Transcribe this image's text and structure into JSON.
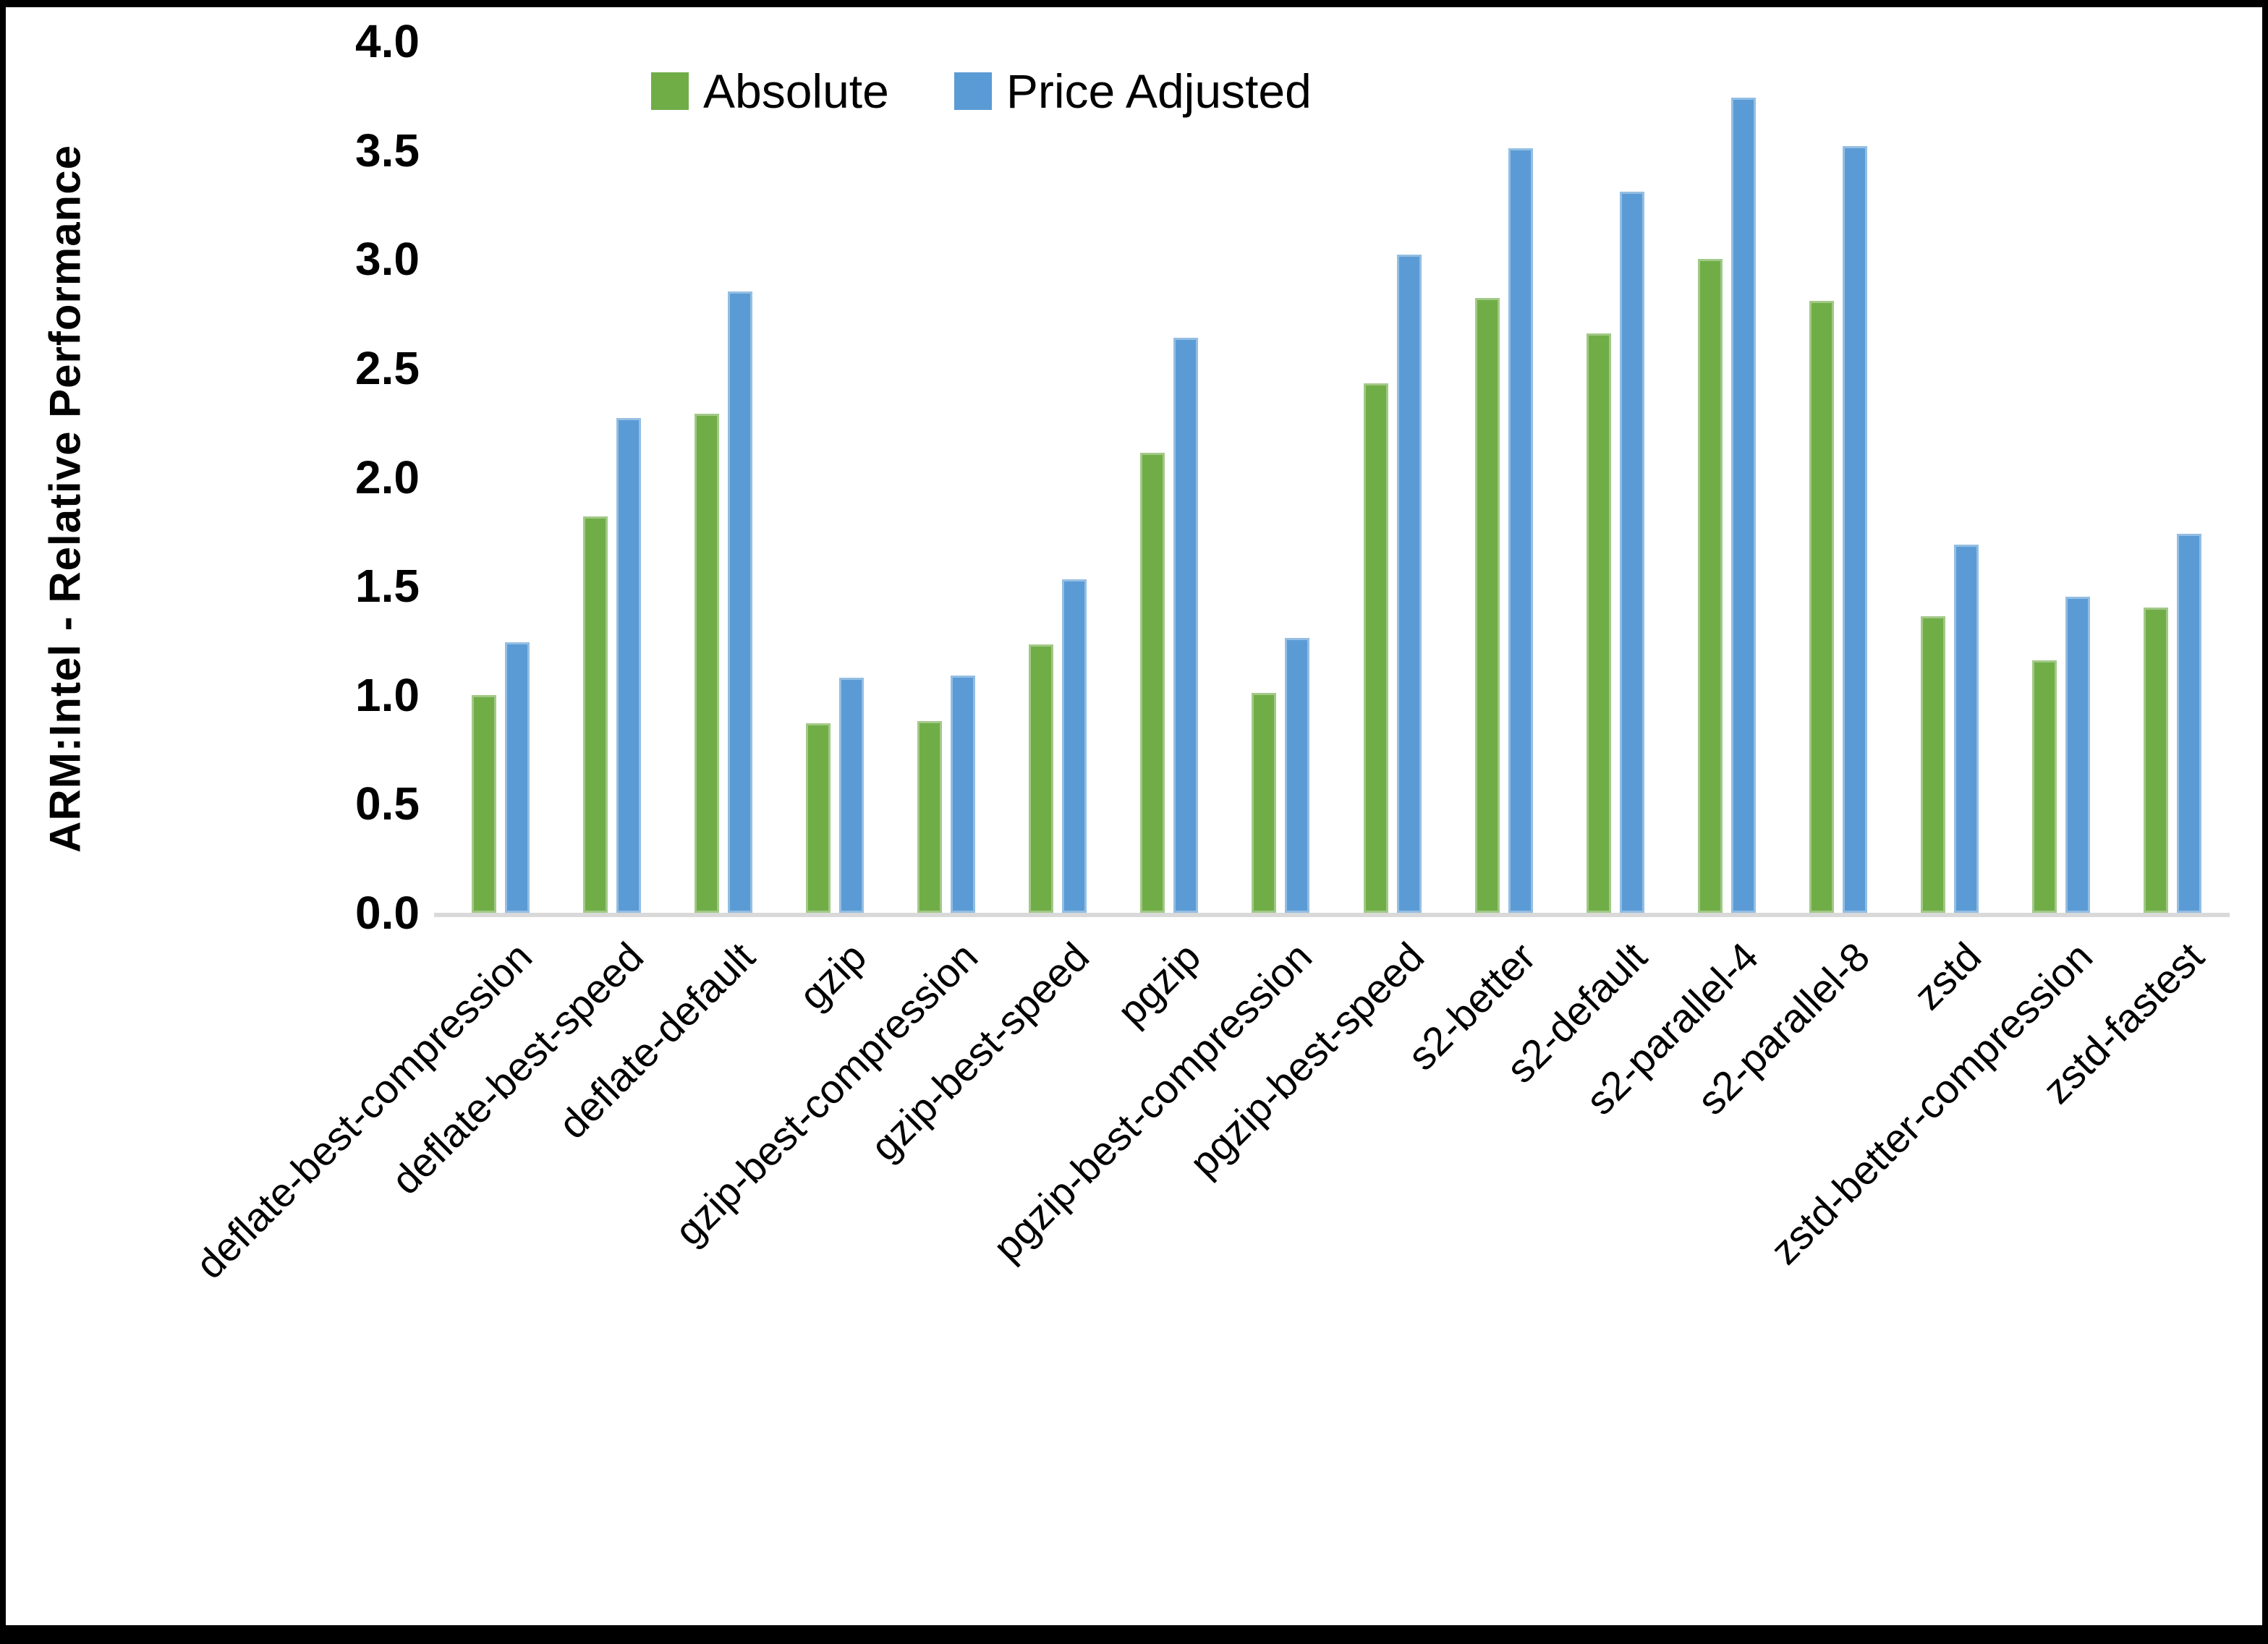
{
  "chart_data": {
    "type": "bar",
    "title": "",
    "xlabel": "",
    "ylabel": "ARM:Intel - Relative Performance",
    "ylim": [
      0.0,
      4.0
    ],
    "ytick_step": 0.5,
    "ytick_labels": [
      "4.0",
      "3.5",
      "3.0",
      "2.5",
      "2.0",
      "1.5",
      "1.0",
      "0.5",
      "0.0"
    ],
    "grid": false,
    "legend_position": "top-center",
    "background": "#ffffff",
    "axis_line_color": "#d9d9d9",
    "categories": [
      "deflate-best-compression",
      "deflate-best-speed",
      "deflate-default",
      "gzip",
      "gzip-best-compression",
      "gzip-best-speed",
      "pgzip",
      "pgzip-best-compression",
      "pgzip-best-speed",
      "s2-better",
      "s2-default",
      "s2-parallel-4",
      "s2-parallel-8",
      "zstd",
      "zstd-better-compression",
      "zstd-fastest"
    ],
    "series": [
      {
        "name": "Absolute",
        "color": "#70AD47",
        "values": [
          1.0,
          1.82,
          2.29,
          0.87,
          0.88,
          1.23,
          2.11,
          1.01,
          2.43,
          2.82,
          2.66,
          3.0,
          2.81,
          1.36,
          1.16,
          1.4
        ]
      },
      {
        "name": "Price Adjusted",
        "color": "#5B9BD5",
        "values": [
          1.24,
          2.27,
          2.85,
          1.08,
          1.09,
          1.53,
          2.64,
          1.26,
          3.02,
          3.51,
          3.31,
          3.74,
          3.52,
          1.69,
          1.45,
          1.74
        ]
      }
    ]
  }
}
